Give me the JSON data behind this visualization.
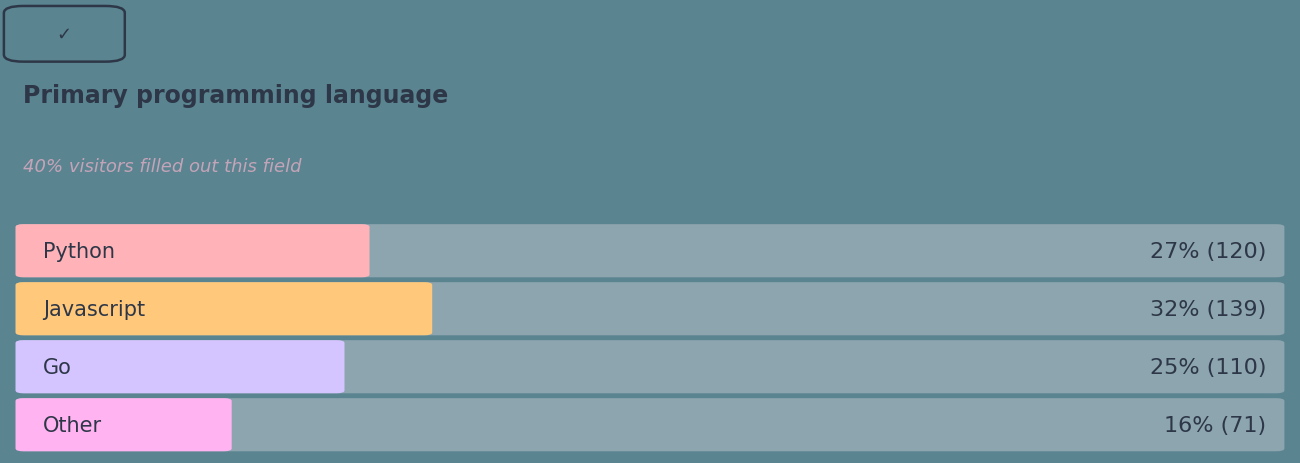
{
  "title": "Primary programming language",
  "subtitle": "40% visitors filled out this field",
  "background_color": "#5b8491",
  "bar_background_color": "#8ca5ae",
  "categories": [
    "Python",
    "Javascript",
    "Go",
    "Other"
  ],
  "percentages": [
    27,
    32,
    25,
    16
  ],
  "counts": [
    120,
    139,
    110,
    71
  ],
  "bar_colors": [
    "#ffb3b8",
    "#ffc87a",
    "#d4c4ff",
    "#ffb3f0"
  ],
  "text_color": "#2d3748",
  "subtitle_color": "#c4a4b8",
  "label_fontsize": 15,
  "title_fontsize": 17,
  "subtitle_fontsize": 13,
  "value_fontsize": 16
}
